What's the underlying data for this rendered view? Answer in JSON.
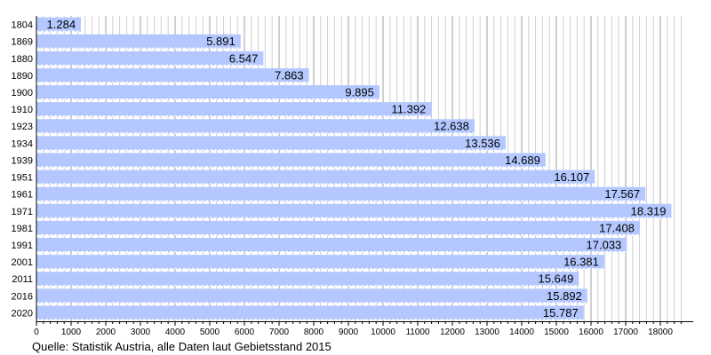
{
  "chart_data": {
    "type": "bar",
    "orientation": "horizontal",
    "categories": [
      "1804",
      "1869",
      "1880",
      "1890",
      "1900",
      "1910",
      "1923",
      "1934",
      "1939",
      "1951",
      "1961",
      "1971",
      "1981",
      "1991",
      "2001",
      "2011",
      "2016",
      "2020"
    ],
    "values": [
      1284,
      5891,
      6547,
      7863,
      9895,
      11392,
      12638,
      13536,
      14689,
      16107,
      17567,
      18319,
      17408,
      17033,
      16381,
      15649,
      15892,
      15787
    ],
    "value_labels": [
      "1.284",
      "5.891",
      "6.547",
      "7.863",
      "9.895",
      "11.392",
      "12.638",
      "13.536",
      "14.689",
      "16.107",
      "17.567",
      "18.319",
      "17.408",
      "17.033",
      "16.381",
      "15.649",
      "15.892",
      "15.787"
    ],
    "x_ticks": [
      0,
      1000,
      2000,
      3000,
      4000,
      5000,
      6000,
      7000,
      8000,
      9000,
      10000,
      11000,
      12000,
      13000,
      14000,
      15000,
      16000,
      17000,
      18000
    ],
    "xlim": [
      0,
      18600
    ],
    "grid": "vertical",
    "bar_color": "#b4c8ff",
    "title": "",
    "xlabel": "",
    "ylabel": "",
    "source": "Quelle: Statistik Austria, alle Daten laut Gebietsstand 2015"
  }
}
